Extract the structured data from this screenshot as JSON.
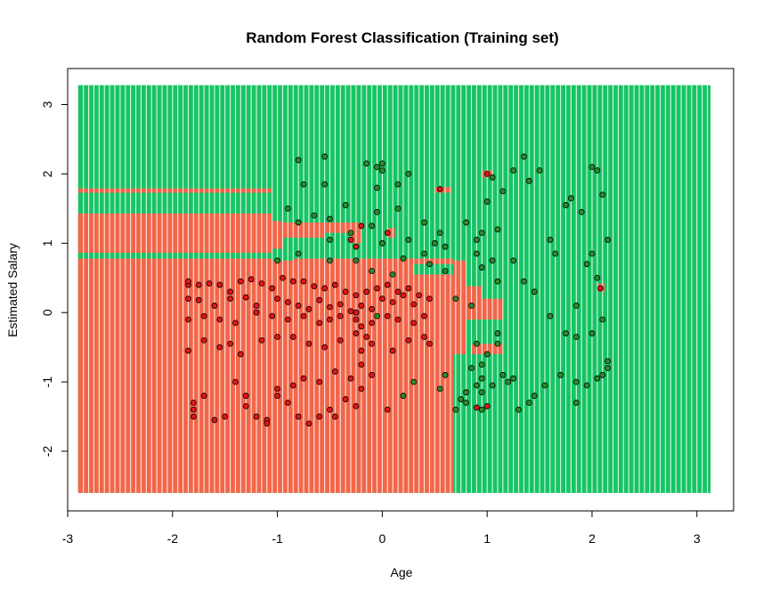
{
  "chart_data": {
    "type": "scatter",
    "title": "Random Forest Classification (Training set)",
    "xlabel": "Age",
    "ylabel": "Estimated Salary",
    "xlim": [
      -3.0,
      3.35
    ],
    "ylim": [
      -2.86,
      3.52
    ],
    "x_ticks": [
      -3,
      -2,
      -1,
      0,
      1,
      2,
      3
    ],
    "y_ticks": [
      -2,
      -1,
      0,
      1,
      2,
      3
    ],
    "grid_extent": {
      "x": [
        -2.9,
        3.13
      ],
      "y": [
        -2.6,
        3.28
      ]
    },
    "classes": [
      {
        "name": "0",
        "region_color": "#f26649",
        "point_color": "#e3161b"
      },
      {
        "name": "1",
        "region_color": "#17c464",
        "point_color": "#2e8b2e"
      }
    ],
    "decision_regions": [
      {
        "x": [
          -2.9,
          0.68
        ],
        "y": [
          -2.6,
          0.78
        ],
        "class": "0"
      },
      {
        "x": [
          -2.9,
          -1.05
        ],
        "y": [
          0.86,
          1.43
        ],
        "class": "0"
      },
      {
        "x": [
          -2.9,
          -1.05
        ],
        "y": [
          1.73,
          1.79
        ],
        "class": "0"
      },
      {
        "x": [
          -1.05,
          -0.95
        ],
        "y": [
          0.92,
          1.32
        ],
        "class": "0"
      },
      {
        "x": [
          -0.95,
          -0.55
        ],
        "y": [
          1.08,
          1.3
        ],
        "class": "0"
      },
      {
        "x": [
          -0.6,
          -0.2
        ],
        "y": [
          1.15,
          1.3
        ],
        "class": "0"
      },
      {
        "x": [
          -0.3,
          -0.2
        ],
        "y": [
          1.0,
          1.18
        ],
        "class": "0"
      },
      {
        "x": [
          0.05,
          0.12
        ],
        "y": [
          1.08,
          1.22
        ],
        "class": "0"
      },
      {
        "x": [
          0.5,
          0.66
        ],
        "y": [
          1.73,
          1.81
        ],
        "class": "0"
      },
      {
        "x": [
          0.95,
          1.05
        ],
        "y": [
          1.95,
          2.05
        ],
        "class": "0"
      },
      {
        "x": [
          2.05,
          2.12
        ],
        "y": [
          0.3,
          0.42
        ],
        "class": "0"
      },
      {
        "x": [
          0.68,
          0.8
        ],
        "y": [
          0.3,
          0.75
        ],
        "class": "0"
      },
      {
        "x": [
          0.68,
          0.95
        ],
        "y": [
          0.15,
          0.38
        ],
        "class": "0"
      },
      {
        "x": [
          0.68,
          1.15
        ],
        "y": [
          -0.1,
          0.2
        ],
        "class": "0"
      },
      {
        "x": [
          0.68,
          0.8
        ],
        "y": [
          -0.6,
          -0.1
        ],
        "class": "0"
      },
      {
        "x": [
          0.85,
          1.15
        ],
        "y": [
          -0.6,
          -0.45
        ],
        "class": "0"
      },
      {
        "x": [
          0.85,
          0.92
        ],
        "y": [
          -0.42,
          -0.35
        ],
        "class": "0"
      },
      {
        "x": [
          -1.05,
          -0.4
        ],
        "y": [
          0.55,
          0.78
        ],
        "class": "0"
      },
      {
        "x": [
          -0.4,
          0.3
        ],
        "y": [
          0.45,
          0.7
        ],
        "class": "0"
      },
      {
        "x": [
          -2.9,
          0.68
        ],
        "y": [
          0.78,
          0.86
        ],
        "class": "1"
      },
      {
        "x": [
          -1.05,
          -0.85
        ],
        "y": [
          0.75,
          0.9
        ],
        "class": "1"
      },
      {
        "x": [
          0.68,
          3.13
        ],
        "y": [
          -2.6,
          -0.6
        ],
        "class": "1"
      },
      {
        "x": [
          0.8,
          1.15
        ],
        "y": [
          -0.45,
          -0.1
        ],
        "class": "1"
      },
      {
        "x": [
          1.15,
          3.13
        ],
        "y": [
          -0.6,
          0.1
        ],
        "class": "1"
      },
      {
        "x": [
          0.3,
          0.68
        ],
        "y": [
          0.55,
          0.7
        ],
        "class": "1"
      }
    ],
    "series": [
      {
        "name": "0",
        "points": [
          [
            -1.85,
            0.4
          ],
          [
            -1.85,
            0.45
          ],
          [
            -1.75,
            0.4
          ],
          [
            -1.65,
            0.42
          ],
          [
            -1.55,
            0.4
          ],
          [
            -1.45,
            0.3
          ],
          [
            -1.35,
            0.45
          ],
          [
            -1.25,
            0.48
          ],
          [
            -1.15,
            0.42
          ],
          [
            -1.05,
            0.35
          ],
          [
            -0.95,
            0.5
          ],
          [
            -0.85,
            0.45
          ],
          [
            -0.75,
            0.45
          ],
          [
            -0.65,
            0.38
          ],
          [
            -0.55,
            0.35
          ],
          [
            -0.45,
            0.4
          ],
          [
            -0.35,
            0.3
          ],
          [
            -0.25,
            0.25
          ],
          [
            -1.85,
            0.2
          ],
          [
            -1.75,
            0.18
          ],
          [
            -1.6,
            0.1
          ],
          [
            -1.45,
            0.2
          ],
          [
            -1.3,
            0.22
          ],
          [
            -1.2,
            0.1
          ],
          [
            -1.0,
            0.2
          ],
          [
            -0.9,
            0.15
          ],
          [
            -0.8,
            0.1
          ],
          [
            -0.7,
            0.05
          ],
          [
            -0.6,
            0.18
          ],
          [
            -0.5,
            0.08
          ],
          [
            -0.4,
            0.12
          ],
          [
            -0.3,
            0.02
          ],
          [
            -0.2,
            0.1
          ],
          [
            -0.1,
            0.05
          ],
          [
            0.0,
            0.2
          ],
          [
            0.1,
            0.15
          ],
          [
            0.2,
            0.25
          ],
          [
            0.3,
            0.12
          ],
          [
            0.45,
            0.2
          ],
          [
            -1.85,
            -0.1
          ],
          [
            -1.7,
            -0.05
          ],
          [
            -1.55,
            -0.1
          ],
          [
            -1.4,
            -0.15
          ],
          [
            -1.2,
            0.0
          ],
          [
            -1.05,
            -0.05
          ],
          [
            -0.9,
            -0.1
          ],
          [
            -0.75,
            -0.05
          ],
          [
            -0.6,
            -0.15
          ],
          [
            -0.5,
            -0.1
          ],
          [
            -0.4,
            -0.05
          ],
          [
            -0.25,
            -0.1
          ],
          [
            -0.1,
            -0.15
          ],
          [
            0.05,
            -0.05
          ],
          [
            0.15,
            -0.1
          ],
          [
            0.3,
            -0.15
          ],
          [
            0.4,
            -0.05
          ],
          [
            -1.85,
            -0.55
          ],
          [
            -1.7,
            -0.4
          ],
          [
            -1.55,
            -0.5
          ],
          [
            -1.45,
            -0.45
          ],
          [
            -1.35,
            -0.6
          ],
          [
            -1.15,
            -0.4
          ],
          [
            -1.0,
            -0.35
          ],
          [
            -0.85,
            -0.35
          ],
          [
            -0.7,
            -0.45
          ],
          [
            -0.55,
            -0.5
          ],
          [
            -0.4,
            -0.4
          ],
          [
            -0.25,
            -0.3
          ],
          [
            -0.1,
            -0.45
          ],
          [
            0.1,
            -0.55
          ],
          [
            0.25,
            -0.4
          ],
          [
            0.4,
            -0.35
          ],
          [
            0.45,
            -0.45
          ],
          [
            -1.8,
            -1.3
          ],
          [
            -1.8,
            -1.4
          ],
          [
            -1.8,
            -1.5
          ],
          [
            -1.7,
            -1.2
          ],
          [
            -1.6,
            -1.55
          ],
          [
            -1.5,
            -1.5
          ],
          [
            -1.4,
            -1.0
          ],
          [
            -1.3,
            -1.2
          ],
          [
            -1.3,
            -1.35
          ],
          [
            -1.2,
            -1.5
          ],
          [
            -1.1,
            -1.55
          ],
          [
            -1.1,
            -1.6
          ],
          [
            -1.0,
            -1.2
          ],
          [
            -0.9,
            -1.3
          ],
          [
            -0.8,
            -1.5
          ],
          [
            -0.7,
            -1.6
          ],
          [
            -0.6,
            -1.5
          ],
          [
            -0.5,
            -1.4
          ],
          [
            -0.45,
            -1.5
          ],
          [
            -0.35,
            -1.25
          ],
          [
            -0.25,
            -1.35
          ],
          [
            -0.2,
            -1.1
          ],
          [
            -0.1,
            -0.9
          ],
          [
            0.05,
            -1.4
          ],
          [
            -1.0,
            -1.1
          ],
          [
            -0.85,
            -1.05
          ],
          [
            -0.75,
            -0.95
          ],
          [
            -0.6,
            -1.0
          ],
          [
            -0.45,
            -0.85
          ],
          [
            -0.3,
            -0.95
          ],
          [
            -0.2,
            -0.75
          ],
          [
            -0.2,
            -0.55
          ],
          [
            -0.15,
            -0.35
          ],
          [
            -0.2,
            -0.2
          ],
          [
            -0.25,
            0.0
          ],
          [
            -0.15,
            0.3
          ],
          [
            -0.05,
            0.35
          ],
          [
            0.05,
            0.4
          ],
          [
            0.15,
            0.3
          ],
          [
            0.25,
            0.35
          ],
          [
            0.35,
            0.25
          ],
          [
            -0.3,
            1.05
          ],
          [
            -0.25,
            0.95
          ],
          [
            -0.2,
            1.25
          ],
          [
            0.05,
            1.15
          ],
          [
            0.55,
            1.78
          ],
          [
            1.0,
            2.0
          ],
          [
            2.08,
            0.35
          ],
          [
            0.9,
            -1.37
          ],
          [
            1.0,
            -1.35
          ]
        ]
      },
      {
        "name": "1",
        "points": [
          [
            -0.8,
            2.2
          ],
          [
            -0.75,
            1.85
          ],
          [
            -0.55,
            2.25
          ],
          [
            -0.55,
            1.85
          ],
          [
            -0.35,
            1.55
          ],
          [
            -0.15,
            2.15
          ],
          [
            -0.05,
            2.1
          ],
          [
            0.0,
            2.05
          ],
          [
            0.0,
            2.15
          ],
          [
            0.15,
            1.85
          ],
          [
            0.25,
            2.0
          ],
          [
            0.15,
            1.5
          ],
          [
            -0.05,
            1.8
          ],
          [
            -0.9,
            1.5
          ],
          [
            -0.8,
            1.3
          ],
          [
            -0.65,
            1.4
          ],
          [
            -0.5,
            1.35
          ],
          [
            -0.5,
            1.05
          ],
          [
            -0.3,
            1.15
          ],
          [
            -0.1,
            1.25
          ],
          [
            -0.05,
            1.45
          ],
          [
            0.0,
            1.0
          ],
          [
            0.25,
            1.05
          ],
          [
            0.4,
            1.3
          ],
          [
            0.5,
            1.0
          ],
          [
            0.55,
            1.15
          ],
          [
            0.6,
            0.95
          ],
          [
            -1.0,
            0.75
          ],
          [
            -0.8,
            0.85
          ],
          [
            -0.5,
            0.75
          ],
          [
            -0.25,
            0.75
          ],
          [
            -0.1,
            0.6
          ],
          [
            0.1,
            0.55
          ],
          [
            0.2,
            0.78
          ],
          [
            0.4,
            0.85
          ],
          [
            0.45,
            0.7
          ],
          [
            0.6,
            0.6
          ],
          [
            0.8,
            1.3
          ],
          [
            0.9,
            1.05
          ],
          [
            0.95,
            1.15
          ],
          [
            0.9,
            0.85
          ],
          [
            0.95,
            0.65
          ],
          [
            1.0,
            1.6
          ],
          [
            1.05,
            1.95
          ],
          [
            1.15,
            1.75
          ],
          [
            1.25,
            2.05
          ],
          [
            1.35,
            2.25
          ],
          [
            1.4,
            1.9
          ],
          [
            1.5,
            2.05
          ],
          [
            1.1,
            1.2
          ],
          [
            1.25,
            0.75
          ],
          [
            1.35,
            0.45
          ],
          [
            1.45,
            0.3
          ],
          [
            1.6,
            1.05
          ],
          [
            1.65,
            0.85
          ],
          [
            1.75,
            1.55
          ],
          [
            1.8,
            1.65
          ],
          [
            1.9,
            1.45
          ],
          [
            2.0,
            2.1
          ],
          [
            2.05,
            2.05
          ],
          [
            2.1,
            1.7
          ],
          [
            2.0,
            0.85
          ],
          [
            1.95,
            0.7
          ],
          [
            2.15,
            1.05
          ],
          [
            2.05,
            0.5
          ],
          [
            1.6,
            -0.05
          ],
          [
            1.75,
            -0.3
          ],
          [
            1.85,
            -0.35
          ],
          [
            1.85,
            0.1
          ],
          [
            2.0,
            -0.3
          ],
          [
            2.1,
            -0.1
          ],
          [
            2.15,
            -0.7
          ],
          [
            2.15,
            -0.8
          ],
          [
            2.1,
            -0.9
          ],
          [
            2.05,
            -0.95
          ],
          [
            1.95,
            -1.05
          ],
          [
            1.85,
            -1.0
          ],
          [
            1.85,
            -1.3
          ],
          [
            1.7,
            -0.9
          ],
          [
            1.55,
            -1.05
          ],
          [
            1.45,
            -1.2
          ],
          [
            1.4,
            -1.3
          ],
          [
            1.3,
            -1.4
          ],
          [
            1.2,
            -1.0
          ],
          [
            1.0,
            -0.6
          ],
          [
            0.95,
            -0.75
          ],
          [
            0.85,
            -0.8
          ],
          [
            0.95,
            -0.95
          ],
          [
            0.9,
            -1.05
          ],
          [
            0.8,
            -1.15
          ],
          [
            0.75,
            -1.25
          ],
          [
            0.7,
            -1.4
          ],
          [
            0.8,
            -1.3
          ],
          [
            0.95,
            -1.15
          ],
          [
            0.95,
            -1.4
          ],
          [
            1.05,
            -1.05
          ],
          [
            1.15,
            -0.9
          ],
          [
            1.25,
            -0.95
          ],
          [
            1.1,
            -0.45
          ],
          [
            0.9,
            -0.45
          ],
          [
            1.1,
            -0.3
          ],
          [
            0.7,
            0.2
          ],
          [
            0.85,
            0.1
          ],
          [
            1.1,
            0.45
          ],
          [
            1.05,
            0.75
          ],
          [
            0.55,
            -1.1
          ],
          [
            0.6,
            -0.9
          ],
          [
            0.2,
            -1.2
          ],
          [
            0.3,
            -1.0
          ],
          [
            -0.05,
            -0.05
          ]
        ]
      }
    ]
  }
}
